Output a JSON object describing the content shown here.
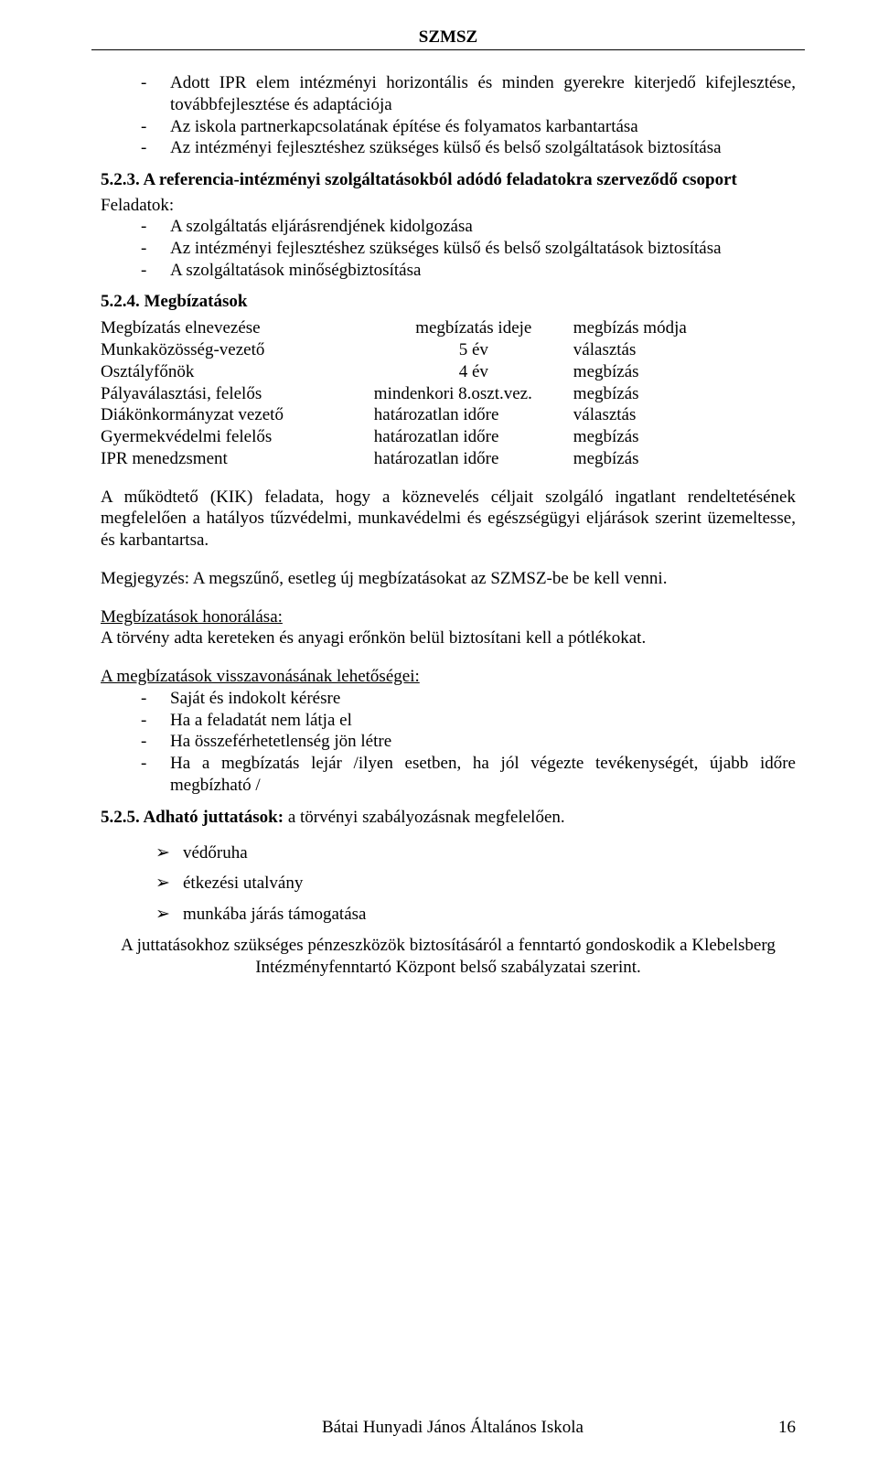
{
  "header": {
    "title": "SZMSZ"
  },
  "section1": {
    "items": [
      "Adott IPR elem intézményi horizontális és minden gyerekre kiterjedő kifejlesztése, továbbfejlesztése és adaptációja",
      "Az iskola partnerkapcsolatának építése és folyamatos karbantartása",
      "Az intézményi fejlesztéshez szükséges külső és belső szolgáltatások biztosítása"
    ]
  },
  "s523": {
    "heading": "5.2.3. A referencia-intézményi szolgáltatásokból adódó feladatokra szerveződő csoport",
    "feladatok_label": "Feladatok:",
    "items": [
      "A szolgáltatás eljárásrendjének kidolgozása",
      "Az intézményi fejlesztéshez szükséges külső és belső szolgáltatások biztosítása",
      "A szolgáltatások minőségbiztosítása"
    ]
  },
  "s524": {
    "heading": "5.2.4. Megbízatások",
    "headers": {
      "c1": "Megbízatás elnevezése",
      "c2": "megbízatás ideje",
      "c3": "megbízás módja"
    },
    "rows": [
      {
        "c1": "Munkaközösség-vezető",
        "c2": "5 év",
        "c3": "választás"
      },
      {
        "c1": "Osztályfőnök",
        "c2": "4 év",
        "c3": "megbízás"
      },
      {
        "c1": "Pályaválasztási, felelős",
        "c2": "mindenkori 8.oszt.vez.",
        "c3": "megbízás"
      },
      {
        "c1": "Diákönkormányzat vezető",
        "c2": "határozatlan időre",
        "c3": "választás"
      },
      {
        "c1": "Gyermekvédelmi felelős",
        "c2": "határozatlan időre",
        "c3": "megbízás"
      },
      {
        "c1": "IPR menedzsment",
        "c2": "határozatlan időre",
        "c3": "megbízás"
      }
    ]
  },
  "para_kik": "A működtető (KIK) feladata, hogy a köznevelés céljait szolgáló ingatlant rendeltetésének megfelelően a hatályos tűzvédelmi, munkavédelmi és egészségügyi eljárások szerint üzemeltesse, és karbantartsa.",
  "para_note": "Megjegyzés: A megszűnő, esetleg új megbízatásokat az SZMSZ-be be kell venni.",
  "honor": {
    "title": "Megbízatások honorálása:",
    "text": "A törvény adta kereteken és anyagi erőnkön belül biztosítani kell a pótlékokat."
  },
  "revoke": {
    "title": "A megbízatások visszavonásának lehetőségei:",
    "items": [
      "Saját és indokolt kérésre",
      "Ha a feladatát nem látja el",
      "Ha összeférhetetlenség jön létre",
      "Ha a megbízatás lejár /ilyen esetben, ha jól végezte tevékenységét, újabb időre megbízható /"
    ]
  },
  "s525": {
    "heading_bold": "5.2.5. Adható juttatások:",
    "heading_rest": " a törvényi szabályozásnak megfelelően.",
    "items": [
      "védőruha",
      "étkezési utalvány",
      "munkába járás támogatása"
    ]
  },
  "closing": "A juttatásokhoz szükséges pénzeszközök biztosításáról a fenntartó gondoskodik a Klebelsberg Intézményfenntartó Központ belső szabályzatai szerint.",
  "footer": {
    "school": "Bátai Hunyadi János Általános Iskola",
    "page": "16"
  }
}
